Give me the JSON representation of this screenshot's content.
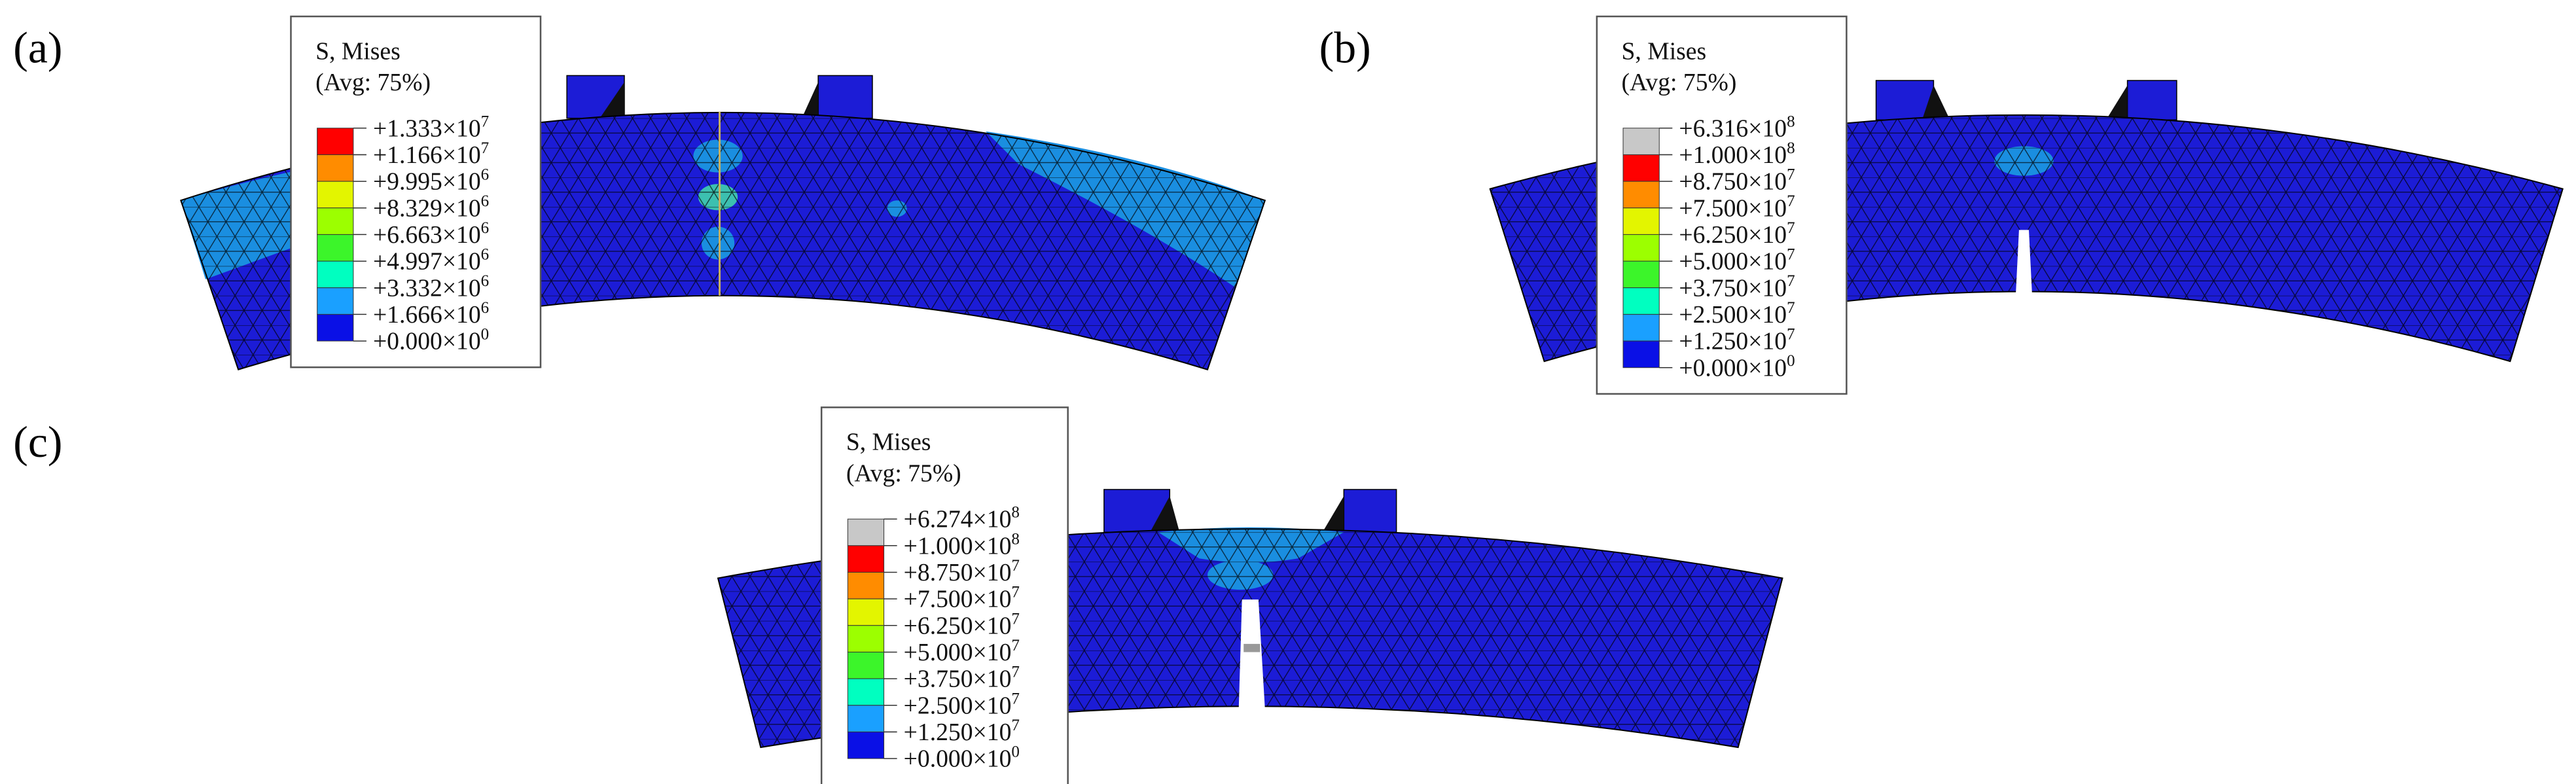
{
  "panels": [
    {
      "label": "(a)",
      "legend_title": "S, Mises",
      "legend_subtitle": "(Avg: 75%)",
      "entries": [
        {
          "mantissa": "+1.333×10",
          "exponent": "7"
        },
        {
          "mantissa": "+1.166×10",
          "exponent": "7"
        },
        {
          "mantissa": "+9.995×10",
          "exponent": "6"
        },
        {
          "mantissa": "+8.329×10",
          "exponent": "6"
        },
        {
          "mantissa": "+6.663×10",
          "exponent": "6"
        },
        {
          "mantissa": "+4.997×10",
          "exponent": "6"
        },
        {
          "mantissa": "+3.332×10",
          "exponent": "6"
        },
        {
          "mantissa": "+1.666×10",
          "exponent": "6"
        },
        {
          "mantissa": "+0.000×10",
          "exponent": "0"
        }
      ],
      "swatch_colors": [
        "#ff0000",
        "#ff8c00",
        "#e3f500",
        "#9cff00",
        "#3cf52a",
        "#00ffc0",
        "#1aa0ff",
        "#0a10e6"
      ]
    },
    {
      "label": "(b)",
      "legend_title": "S, Mises",
      "legend_subtitle": "(Avg: 75%)",
      "entries": [
        {
          "mantissa": "+6.316×10",
          "exponent": "8"
        },
        {
          "mantissa": "+1.000×10",
          "exponent": "8"
        },
        {
          "mantissa": "+8.750×10",
          "exponent": "7"
        },
        {
          "mantissa": "+7.500×10",
          "exponent": "7"
        },
        {
          "mantissa": "+6.250×10",
          "exponent": "7"
        },
        {
          "mantissa": "+5.000×10",
          "exponent": "7"
        },
        {
          "mantissa": "+3.750×10",
          "exponent": "7"
        },
        {
          "mantissa": "+2.500×10",
          "exponent": "7"
        },
        {
          "mantissa": "+1.250×10",
          "exponent": "7"
        },
        {
          "mantissa": "+0.000×10",
          "exponent": "0"
        }
      ],
      "swatch_colors": [
        "#c8c8c8",
        "#ff0000",
        "#ff8c00",
        "#e3f500",
        "#9cff00",
        "#3cf52a",
        "#00ffc0",
        "#1aa0ff",
        "#0a10e6"
      ]
    },
    {
      "label": "(c)",
      "legend_title": "S, Mises",
      "legend_subtitle": "(Avg: 75%)",
      "entries": [
        {
          "mantissa": "+6.274×10",
          "exponent": "8"
        },
        {
          "mantissa": "+1.000×10",
          "exponent": "8"
        },
        {
          "mantissa": "+8.750×10",
          "exponent": "7"
        },
        {
          "mantissa": "+7.500×10",
          "exponent": "7"
        },
        {
          "mantissa": "+6.250×10",
          "exponent": "7"
        },
        {
          "mantissa": "+5.000×10",
          "exponent": "7"
        },
        {
          "mantissa": "+3.750×10",
          "exponent": "7"
        },
        {
          "mantissa": "+2.500×10",
          "exponent": "7"
        },
        {
          "mantissa": "+1.250×10",
          "exponent": "7"
        },
        {
          "mantissa": "+0.000×10",
          "exponent": "0"
        }
      ],
      "swatch_colors": [
        "#c8c8c8",
        "#ff0000",
        "#ff8c00",
        "#e3f500",
        "#9cff00",
        "#3cf52a",
        "#00ffc0",
        "#1aa0ff",
        "#0a10e6"
      ]
    }
  ]
}
